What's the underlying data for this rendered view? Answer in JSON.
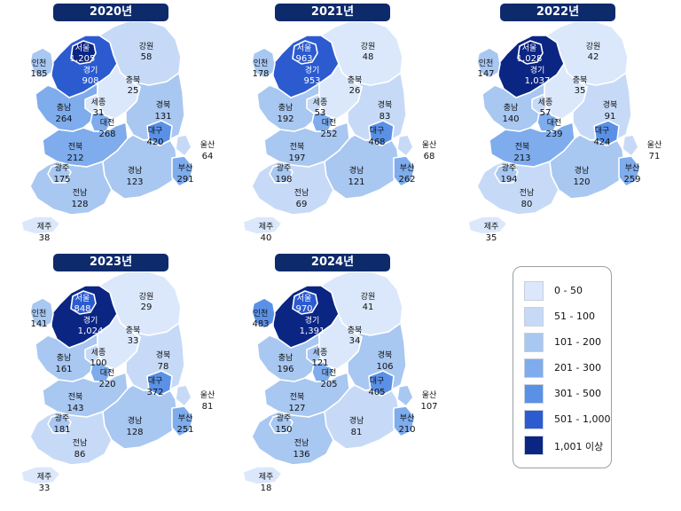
{
  "legend": {
    "items": [
      {
        "label": "0 - 50",
        "color": "#dbe8fb"
      },
      {
        "label": "51 - 100",
        "color": "#c6daf7"
      },
      {
        "label": "101 - 200",
        "color": "#a8c7f1"
      },
      {
        "label": "201 - 300",
        "color": "#7eacec"
      },
      {
        "label": "301 - 500",
        "color": "#5a91e6"
      },
      {
        "label": "501 - 1,000",
        "color": "#2c5bd0"
      },
      {
        "label": "1,001 이상",
        "color": "#0b2583"
      }
    ]
  },
  "maps": [
    {
      "year": "2020년",
      "regions": [
        {
          "id": "seoul",
          "name": "서울",
          "value": "1,205"
        },
        {
          "id": "incheon",
          "name": "인천",
          "value": "185"
        },
        {
          "id": "gyeonggi",
          "name": "경기",
          "value": "908"
        },
        {
          "id": "gangwon",
          "name": "강원",
          "value": "58"
        },
        {
          "id": "chungbuk",
          "name": "충북",
          "value": "25"
        },
        {
          "id": "chungnam",
          "name": "충남",
          "value": "264"
        },
        {
          "id": "sejong",
          "name": "세종",
          "value": "31"
        },
        {
          "id": "daejeon",
          "name": "대전",
          "value": "268"
        },
        {
          "id": "gyeongbuk",
          "name": "경북",
          "value": "131"
        },
        {
          "id": "daegu",
          "name": "대구",
          "value": "420"
        },
        {
          "id": "ulsan",
          "name": "울산",
          "value": "64"
        },
        {
          "id": "jeonbuk",
          "name": "전북",
          "value": "212"
        },
        {
          "id": "gwangju",
          "name": "광주",
          "value": "175"
        },
        {
          "id": "gyeongnam",
          "name": "경남",
          "value": "123"
        },
        {
          "id": "busan",
          "name": "부산",
          "value": "291"
        },
        {
          "id": "jeonnam",
          "name": "전남",
          "value": "128"
        },
        {
          "id": "jeju",
          "name": "제주",
          "value": "38"
        }
      ]
    },
    {
      "year": "2021년",
      "regions": [
        {
          "id": "seoul",
          "name": "서울",
          "value": "963"
        },
        {
          "id": "incheon",
          "name": "인천",
          "value": "178"
        },
        {
          "id": "gyeonggi",
          "name": "경기",
          "value": "953"
        },
        {
          "id": "gangwon",
          "name": "강원",
          "value": "48"
        },
        {
          "id": "chungbuk",
          "name": "충북",
          "value": "26"
        },
        {
          "id": "chungnam",
          "name": "충남",
          "value": "192"
        },
        {
          "id": "sejong",
          "name": "세종",
          "value": "53"
        },
        {
          "id": "daejeon",
          "name": "대전",
          "value": "252"
        },
        {
          "id": "gyeongbuk",
          "name": "경북",
          "value": "83"
        },
        {
          "id": "daegu",
          "name": "대구",
          "value": "468"
        },
        {
          "id": "ulsan",
          "name": "울산",
          "value": "68"
        },
        {
          "id": "jeonbuk",
          "name": "전북",
          "value": "197"
        },
        {
          "id": "gwangju",
          "name": "광주",
          "value": "198"
        },
        {
          "id": "gyeongnam",
          "name": "경남",
          "value": "121"
        },
        {
          "id": "busan",
          "name": "부산",
          "value": "262"
        },
        {
          "id": "jeonnam",
          "name": "전남",
          "value": "69"
        },
        {
          "id": "jeju",
          "name": "제주",
          "value": "40"
        }
      ]
    },
    {
      "year": "2022년",
      "regions": [
        {
          "id": "seoul",
          "name": "서울",
          "value": "1,028"
        },
        {
          "id": "incheon",
          "name": "인천",
          "value": "147"
        },
        {
          "id": "gyeonggi",
          "name": "경기",
          "value": "1,037"
        },
        {
          "id": "gangwon",
          "name": "강원",
          "value": "42"
        },
        {
          "id": "chungbuk",
          "name": "충북",
          "value": "35"
        },
        {
          "id": "chungnam",
          "name": "충남",
          "value": "140"
        },
        {
          "id": "sejong",
          "name": "세종",
          "value": "57"
        },
        {
          "id": "daejeon",
          "name": "대전",
          "value": "239"
        },
        {
          "id": "gyeongbuk",
          "name": "경북",
          "value": "91"
        },
        {
          "id": "daegu",
          "name": "대구",
          "value": "424"
        },
        {
          "id": "ulsan",
          "name": "울산",
          "value": "71"
        },
        {
          "id": "jeonbuk",
          "name": "전북",
          "value": "213"
        },
        {
          "id": "gwangju",
          "name": "광주",
          "value": "194"
        },
        {
          "id": "gyeongnam",
          "name": "경남",
          "value": "120"
        },
        {
          "id": "busan",
          "name": "부산",
          "value": "259"
        },
        {
          "id": "jeonnam",
          "name": "전남",
          "value": "80"
        },
        {
          "id": "jeju",
          "name": "제주",
          "value": "35"
        }
      ]
    },
    {
      "year": "2023년",
      "regions": [
        {
          "id": "seoul",
          "name": "서울",
          "value": "848"
        },
        {
          "id": "incheon",
          "name": "인천",
          "value": "141"
        },
        {
          "id": "gyeonggi",
          "name": "경기",
          "value": "1,024"
        },
        {
          "id": "gangwon",
          "name": "강원",
          "value": "29"
        },
        {
          "id": "chungbuk",
          "name": "충북",
          "value": "33"
        },
        {
          "id": "chungnam",
          "name": "충남",
          "value": "161"
        },
        {
          "id": "sejong",
          "name": "세종",
          "value": "100"
        },
        {
          "id": "daejeon",
          "name": "대전",
          "value": "220"
        },
        {
          "id": "gyeongbuk",
          "name": "경북",
          "value": "78"
        },
        {
          "id": "daegu",
          "name": "대구",
          "value": "372"
        },
        {
          "id": "ulsan",
          "name": "울산",
          "value": "81"
        },
        {
          "id": "jeonbuk",
          "name": "전북",
          "value": "143"
        },
        {
          "id": "gwangju",
          "name": "광주",
          "value": "181"
        },
        {
          "id": "gyeongnam",
          "name": "경남",
          "value": "128"
        },
        {
          "id": "busan",
          "name": "부산",
          "value": "251"
        },
        {
          "id": "jeonnam",
          "name": "전남",
          "value": "86"
        },
        {
          "id": "jeju",
          "name": "제주",
          "value": "33"
        }
      ]
    },
    {
      "year": "2024년",
      "regions": [
        {
          "id": "seoul",
          "name": "서울",
          "value": "970"
        },
        {
          "id": "incheon",
          "name": "인천",
          "value": "483"
        },
        {
          "id": "gyeonggi",
          "name": "경기",
          "value": "1,391"
        },
        {
          "id": "gangwon",
          "name": "강원",
          "value": "41"
        },
        {
          "id": "chungbuk",
          "name": "충북",
          "value": "34"
        },
        {
          "id": "chungnam",
          "name": "충남",
          "value": "196"
        },
        {
          "id": "sejong",
          "name": "세종",
          "value": "121"
        },
        {
          "id": "daejeon",
          "name": "대전",
          "value": "205"
        },
        {
          "id": "gyeongbuk",
          "name": "경북",
          "value": "106"
        },
        {
          "id": "daegu",
          "name": "대구",
          "value": "405"
        },
        {
          "id": "ulsan",
          "name": "울산",
          "value": "107"
        },
        {
          "id": "jeonbuk",
          "name": "전북",
          "value": "127"
        },
        {
          "id": "gwangju",
          "name": "광주",
          "value": "150"
        },
        {
          "id": "gyeongnam",
          "name": "경남",
          "value": "81"
        },
        {
          "id": "busan",
          "name": "부산",
          "value": "210"
        },
        {
          "id": "jeonnam",
          "name": "전남",
          "value": "136"
        },
        {
          "id": "jeju",
          "name": "제주",
          "value": "18"
        }
      ]
    }
  ]
}
